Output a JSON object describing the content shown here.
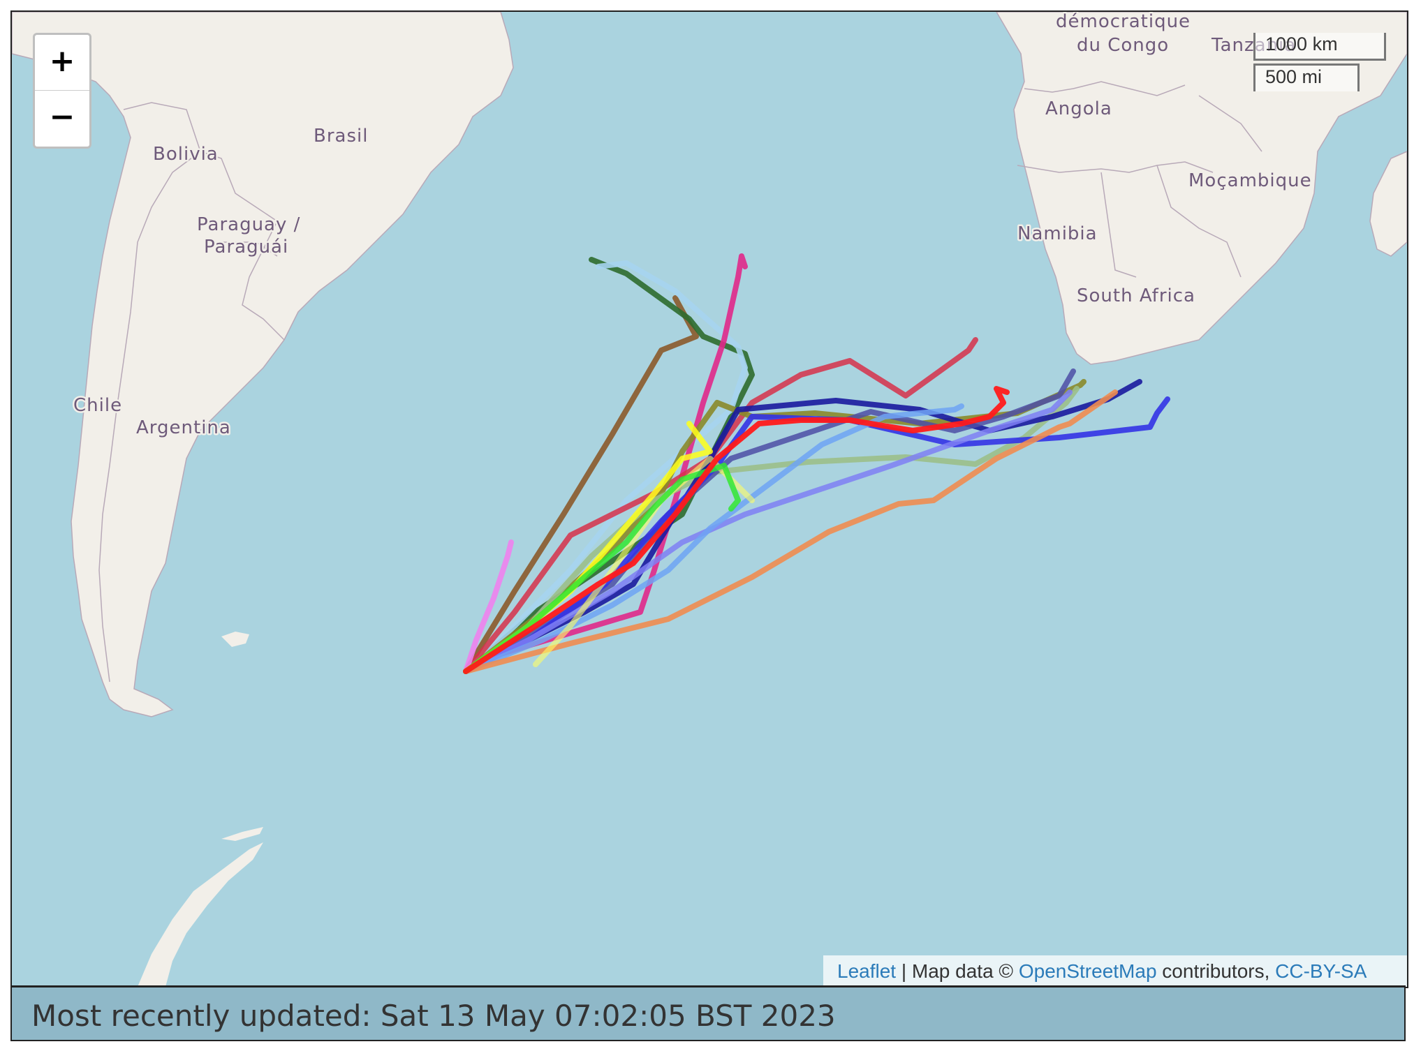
{
  "map": {
    "zoom_in_label": "+",
    "zoom_out_label": "−",
    "scale_km": "1000 km",
    "scale_mi": "500 mi",
    "labels": {
      "congo": [
        "démocratique",
        "du Congo"
      ],
      "tanzania": "Tanzania",
      "angola": "Angola",
      "mozambique": "Moçambique",
      "namibia": "Namibia",
      "south_africa": "South Africa",
      "brasil": "Brasil",
      "bolivia": "Bolivia",
      "paraguay": [
        "Paraguay /",
        "Paraguái"
      ],
      "chile": "Chile",
      "argentina": "Argentina"
    },
    "track_colors": [
      "#8b5a2b",
      "#2e6b2e",
      "#a6d4f0",
      "#e0288a",
      "#d7304a",
      "#6a8c1f",
      "#8a8a2a",
      "#9bbf8a",
      "#1a1a9e",
      "#4d4da6",
      "#3333e6",
      "#7f7ff5",
      "#6fa3f5",
      "#f08c50",
      "#ee82ee",
      "#ffff1a",
      "#33e633",
      "#ff1a1a"
    ],
    "attribution": {
      "leaflet": "Leaflet",
      "separator": " | Map data © ",
      "osm": "OpenStreetMap",
      "contributors": " contributors, ",
      "license": "CC-BY-SA"
    }
  },
  "status": {
    "text": "Most recently updated: Sat 13 May 07:02:05 BST 2023"
  }
}
